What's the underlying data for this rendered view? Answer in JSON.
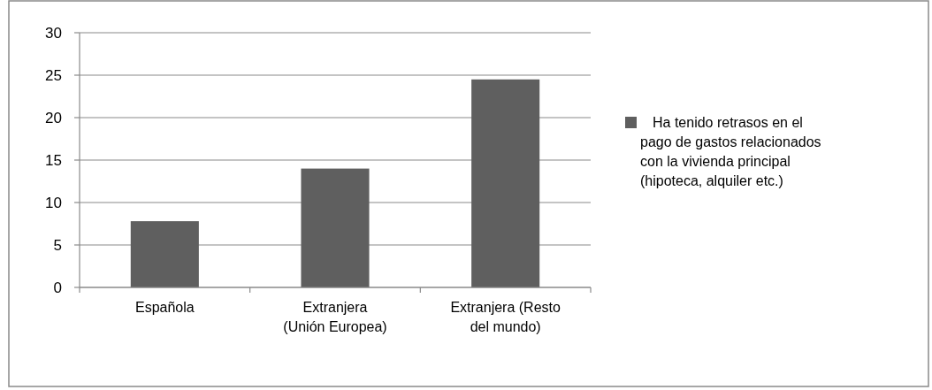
{
  "chart_data": {
    "type": "bar",
    "categories": [
      "Española",
      "Extranjera\n(Unión Europea)",
      "Extranjera (Resto\ndel mundo)"
    ],
    "series": [
      {
        "name": "Ha tenido retrasos en el\npago de gastos relacionados\ncon la vivienda principal\n(hipoteca, alquiler etc.)",
        "color": "#5f5f5f",
        "values": [
          7.8,
          14,
          24.5
        ]
      }
    ],
    "ylim": [
      0,
      30
    ],
    "yticks": [
      0,
      5,
      10,
      15,
      20,
      25,
      30
    ],
    "grid": "y",
    "legend": "right"
  }
}
